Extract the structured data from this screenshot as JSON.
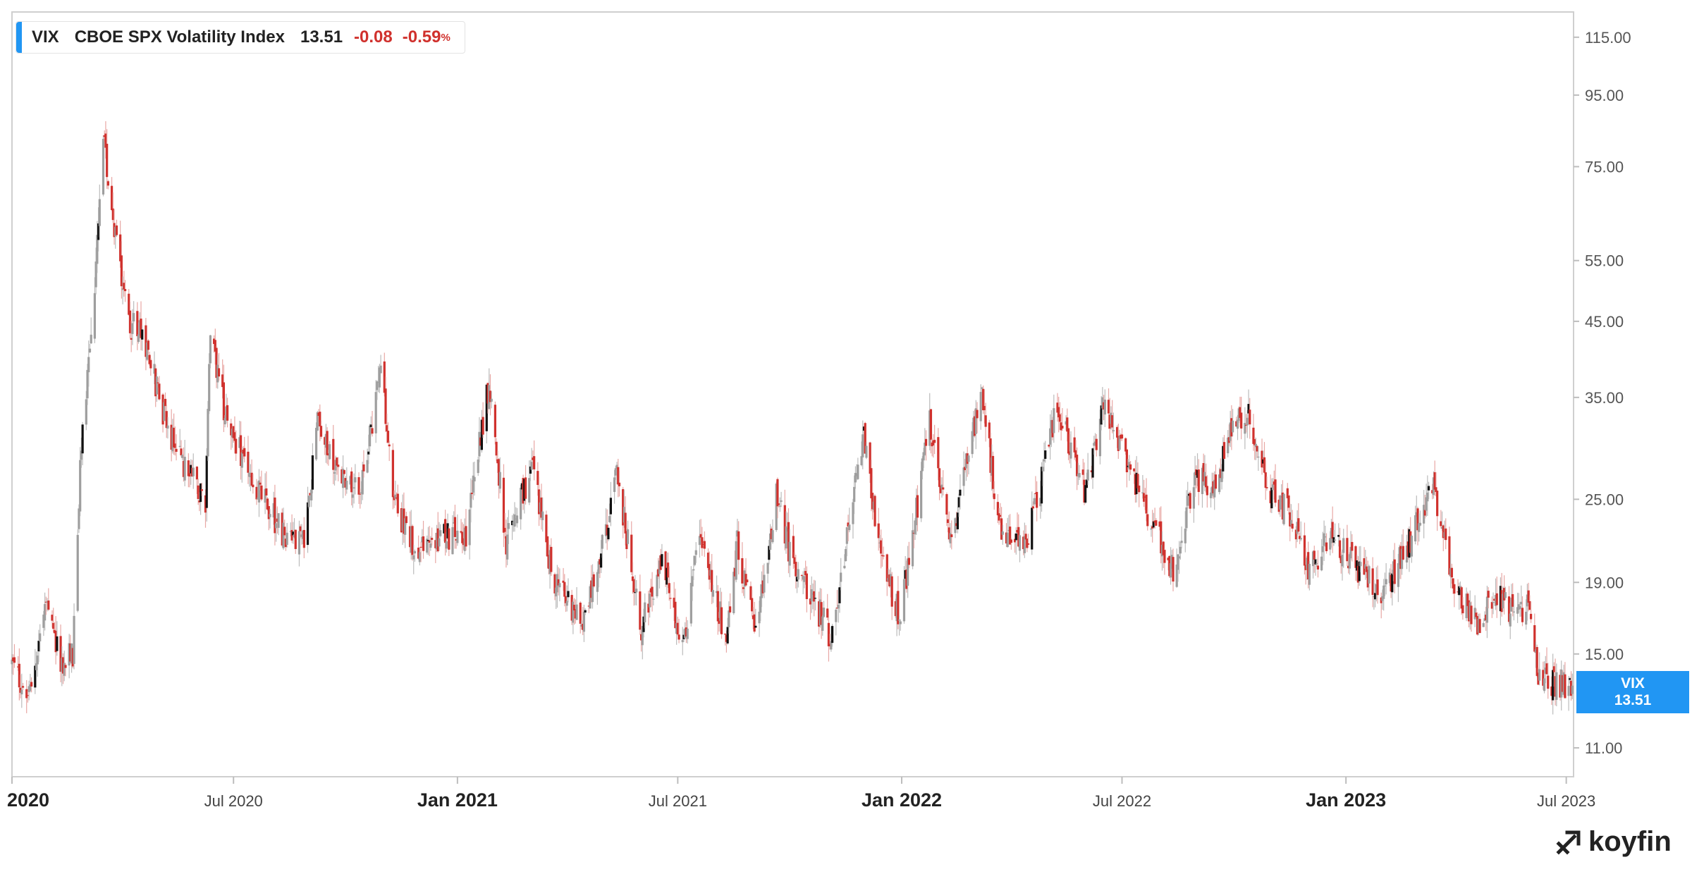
{
  "legend": {
    "symbol": "VIX",
    "name": "CBOE SPX Volatility Index",
    "last": "13.51",
    "change": "-0.08",
    "change_pct": "-0.59",
    "pct_sign": "%"
  },
  "price_tag": {
    "symbol": "VIX",
    "value": "13.51"
  },
  "brand": {
    "name": "koyfin"
  },
  "colors": {
    "up": "#9e9e9e",
    "down": "#d0312d",
    "accent": "#2196f3",
    "dark": "#111111"
  },
  "chart_data": {
    "type": "candlestick",
    "series_name": "VIX",
    "y_scale": "log",
    "ylim": [
      10,
      125
    ],
    "y_ticks": [
      {
        "value": 115,
        "label": "115.00"
      },
      {
        "value": 95,
        "label": "95.00"
      },
      {
        "value": 75,
        "label": "75.00"
      },
      {
        "value": 55,
        "label": "55.00"
      },
      {
        "value": 45,
        "label": "45.00"
      },
      {
        "value": 35,
        "label": "35.00"
      },
      {
        "value": 25,
        "label": "25.00"
      },
      {
        "value": 19,
        "label": "19.00"
      },
      {
        "value": 15,
        "label": "15.00"
      },
      {
        "value": 11,
        "label": "11.00"
      }
    ],
    "x_range": [
      "2020-01-01",
      "2023-07-07"
    ],
    "x_ticks": [
      {
        "date": "2020-01-01",
        "label": "2020",
        "major": true
      },
      {
        "date": "2020-07-01",
        "label": "Jul 2020",
        "major": false
      },
      {
        "date": "2021-01-01",
        "label": "Jan 2021",
        "major": true
      },
      {
        "date": "2021-07-01",
        "label": "Jul 2021",
        "major": false
      },
      {
        "date": "2022-01-01",
        "label": "Jan 2022",
        "major": true
      },
      {
        "date": "2022-07-01",
        "label": "Jul 2022",
        "major": false
      },
      {
        "date": "2023-01-01",
        "label": "Jan 2023",
        "major": true
      },
      {
        "date": "2023-07-01",
        "label": "Jul 2023",
        "major": false
      }
    ],
    "trend": [
      [
        "2020-01-01",
        14.5
      ],
      [
        "2020-01-15",
        13.0
      ],
      [
        "2020-01-28",
        17.5
      ],
      [
        "2020-02-10",
        14.5
      ],
      [
        "2020-02-20",
        15.0
      ],
      [
        "2020-02-27",
        30.0
      ],
      [
        "2020-03-09",
        50.0
      ],
      [
        "2020-03-16",
        82.0
      ],
      [
        "2020-03-24",
        64.0
      ],
      [
        "2020-04-06",
        45.0
      ],
      [
        "2020-04-20",
        42.0
      ],
      [
        "2020-05-05",
        33.0
      ],
      [
        "2020-05-20",
        28.0
      ],
      [
        "2020-06-08",
        25.0
      ],
      [
        "2020-06-12",
        43.0
      ],
      [
        "2020-06-26",
        32.0
      ],
      [
        "2020-07-15",
        27.0
      ],
      [
        "2020-08-10",
        22.5
      ],
      [
        "2020-08-28",
        22.0
      ],
      [
        "2020-09-08",
        32.0
      ],
      [
        "2020-09-25",
        27.0
      ],
      [
        "2020-10-15",
        26.5
      ],
      [
        "2020-10-30",
        39.0
      ],
      [
        "2020-11-09",
        25.0
      ],
      [
        "2020-11-30",
        21.0
      ],
      [
        "2020-12-20",
        22.0
      ],
      [
        "2021-01-08",
        22.5
      ],
      [
        "2021-01-27",
        37.0
      ],
      [
        "2021-02-10",
        21.5
      ],
      [
        "2021-03-04",
        28.0
      ],
      [
        "2021-03-20",
        19.5
      ],
      [
        "2021-04-15",
        16.5
      ],
      [
        "2021-05-12",
        27.0
      ],
      [
        "2021-06-01",
        16.5
      ],
      [
        "2021-06-18",
        20.5
      ],
      [
        "2021-07-05",
        15.5
      ],
      [
        "2021-07-19",
        22.0
      ],
      [
        "2021-08-10",
        15.8
      ],
      [
        "2021-08-19",
        21.5
      ],
      [
        "2021-09-03",
        16.0
      ],
      [
        "2021-09-20",
        25.5
      ],
      [
        "2021-10-01",
        21.0
      ],
      [
        "2021-11-05",
        15.8
      ],
      [
        "2021-11-26",
        28.5
      ],
      [
        "2021-12-01",
        31.0
      ],
      [
        "2021-12-15",
        20.5
      ],
      [
        "2021-12-31",
        17.0
      ],
      [
        "2022-01-24",
        32.0
      ],
      [
        "2022-02-10",
        21.5
      ],
      [
        "2022-03-07",
        35.5
      ],
      [
        "2022-03-25",
        21.5
      ],
      [
        "2022-04-15",
        22.0
      ],
      [
        "2022-05-09",
        34.0
      ],
      [
        "2022-05-31",
        26.0
      ],
      [
        "2022-06-16",
        34.0
      ],
      [
        "2022-07-20",
        24.5
      ],
      [
        "2022-08-12",
        19.8
      ],
      [
        "2022-08-29",
        26.5
      ],
      [
        "2022-09-15",
        26.5
      ],
      [
        "2022-09-30",
        31.5
      ],
      [
        "2022-10-12",
        33.5
      ],
      [
        "2022-10-28",
        26.0
      ],
      [
        "2022-11-15",
        24.0
      ],
      [
        "2022-12-01",
        20.0
      ],
      [
        "2022-12-20",
        22.0
      ],
      [
        "2023-01-15",
        19.5
      ],
      [
        "2023-02-01",
        18.5
      ],
      [
        "2023-02-24",
        22.0
      ],
      [
        "2023-03-13",
        26.5
      ],
      [
        "2023-03-31",
        18.8
      ],
      [
        "2023-04-20",
        16.5
      ],
      [
        "2023-05-05",
        18.5
      ],
      [
        "2023-05-20",
        17.0
      ],
      [
        "2023-05-31",
        17.8
      ],
      [
        "2023-06-08",
        14.0
      ],
      [
        "2023-06-20",
        13.7
      ],
      [
        "2023-07-06",
        13.51
      ]
    ]
  }
}
